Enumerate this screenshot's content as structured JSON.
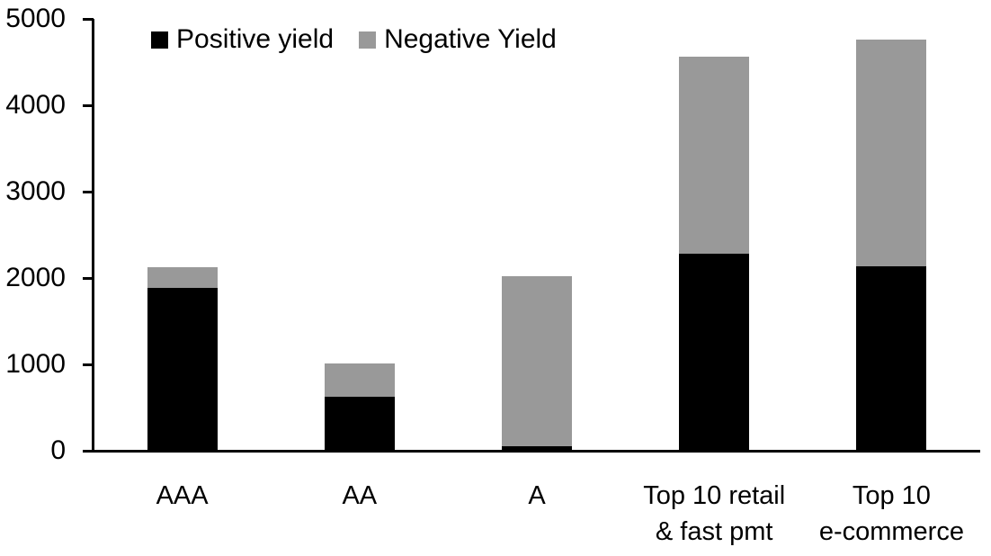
{
  "chart_data": {
    "type": "bar",
    "stacked": true,
    "categories": [
      "AAA",
      "AA",
      "A",
      "Top 10 retail\n& fast pmt",
      "Top 10\ne-commerce"
    ],
    "series": [
      {
        "name": "Positive yield",
        "color": "#000000",
        "values": [
          1890,
          620,
          50,
          2280,
          2140
        ]
      },
      {
        "name": "Negative Yield",
        "color": "#999999",
        "values": [
          230,
          390,
          1975,
          2280,
          2620
        ]
      }
    ],
    "totals": [
      2120,
      1010,
      2025,
      4560,
      4760
    ],
    "xlabel": "",
    "ylabel": "",
    "ylim": [
      0,
      5000
    ],
    "yticks": [
      0,
      1000,
      2000,
      3000,
      4000,
      5000
    ],
    "grid": false,
    "legend_position": "top-inside",
    "background_color": "#ffffff",
    "axis_color": "#000000"
  }
}
